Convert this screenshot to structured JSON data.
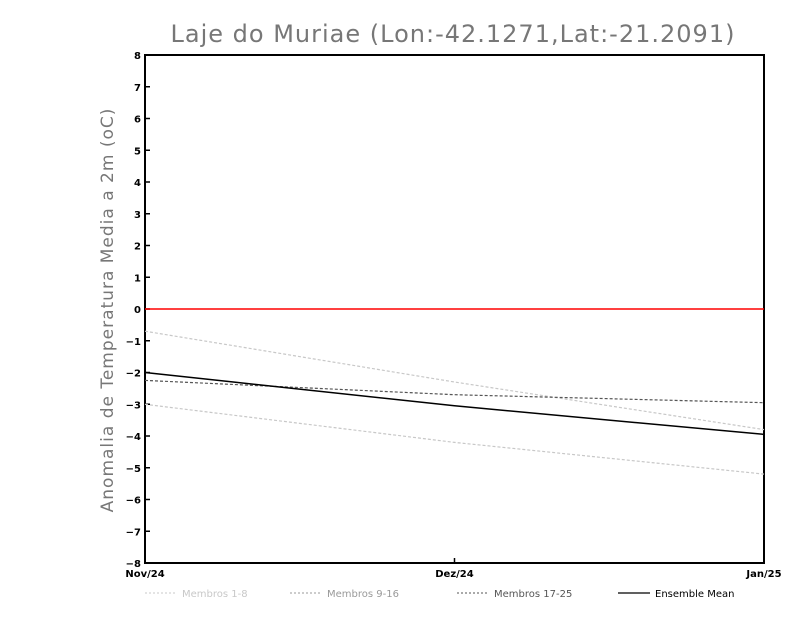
{
  "chart_data": {
    "type": "line",
    "title": "Laje do Muriae (Lon:-42.1271,Lat:-21.2091)",
    "xlabel": "",
    "ylabel": "Anomalia de Temperatura Media a 2m (oC)",
    "categories": [
      "Nov/24",
      "Dez/24",
      "Jan/25"
    ],
    "ylim": [
      -8,
      8
    ],
    "yticks": [
      8,
      7,
      6,
      5,
      4,
      3,
      2,
      1,
      0,
      -1,
      -2,
      -3,
      -4,
      -5,
      -6,
      -7,
      -8
    ],
    "grid": false,
    "legend_position": "bottom",
    "reference_line": {
      "value": 0,
      "color": "#ff0000"
    },
    "series": [
      {
        "name": "Membros 1-8",
        "values": [
          -0.7,
          -2.3,
          -3.8
        ],
        "color": "#c8c8c8",
        "dash": true,
        "shade": "light"
      },
      {
        "name": "Membros 1-8",
        "values": [
          -3.0,
          -4.2,
          -5.2
        ],
        "color": "#c8c8c8",
        "dash": true,
        "shade": "light"
      },
      {
        "name": "Membros 17-25",
        "values": [
          -2.25,
          -2.7,
          -2.95
        ],
        "color": "#555555",
        "dash": true,
        "shade": "dark"
      },
      {
        "name": "Ensemble Mean",
        "values": [
          -2.0,
          -3.05,
          -3.95
        ],
        "color": "#000000",
        "dash": false,
        "shade": "black"
      }
    ],
    "legend": [
      {
        "label": "Membros 1-8",
        "color": "#c8c8c8",
        "dash": true
      },
      {
        "label": "Membros 9-16",
        "color": "#999999",
        "dash": true
      },
      {
        "label": "Membros 17-25",
        "color": "#555555",
        "dash": true
      },
      {
        "label": "Ensemble Mean",
        "color": "#000000",
        "dash": false
      }
    ]
  }
}
